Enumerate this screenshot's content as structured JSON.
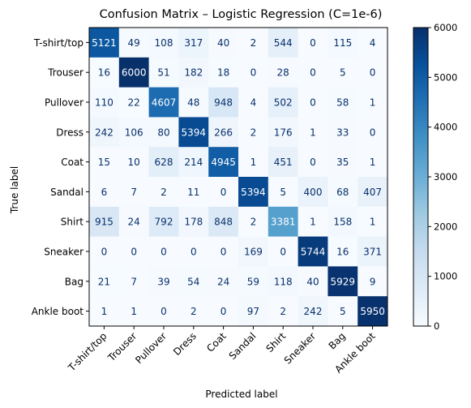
{
  "chart_data": {
    "type": "heatmap",
    "title": "Confusion Matrix – Logistic Regression (C=1e-6)",
    "xlabel": "Predicted label",
    "ylabel": "True label",
    "x_categories": [
      "T-shirt/top",
      "Trouser",
      "Pullover",
      "Dress",
      "Coat",
      "Sandal",
      "Shirt",
      "Sneaker",
      "Bag",
      "Ankle boot"
    ],
    "y_categories": [
      "T-shirt/top",
      "Trouser",
      "Pullover",
      "Dress",
      "Coat",
      "Sandal",
      "Shirt",
      "Sneaker",
      "Bag",
      "Ankle boot"
    ],
    "values": [
      [
        5121,
        49,
        108,
        317,
        40,
        2,
        544,
        0,
        115,
        4
      ],
      [
        16,
        6000,
        51,
        182,
        18,
        0,
        28,
        0,
        5,
        0
      ],
      [
        110,
        22,
        4607,
        48,
        948,
        4,
        502,
        0,
        58,
        1
      ],
      [
        242,
        106,
        80,
        5394,
        266,
        2,
        176,
        1,
        33,
        0
      ],
      [
        15,
        10,
        628,
        214,
        4945,
        1,
        451,
        0,
        35,
        1
      ],
      [
        6,
        7,
        2,
        11,
        0,
        5394,
        5,
        400,
        68,
        407
      ],
      [
        915,
        24,
        792,
        178,
        848,
        2,
        3381,
        1,
        158,
        1
      ],
      [
        0,
        0,
        0,
        0,
        0,
        169,
        0,
        5744,
        16,
        371
      ],
      [
        21,
        7,
        39,
        54,
        24,
        59,
        118,
        40,
        5929,
        9
      ],
      [
        1,
        1,
        0,
        2,
        0,
        97,
        2,
        242,
        5,
        5950
      ]
    ],
    "colorbar": {
      "range": [
        0,
        6000
      ],
      "ticks": [
        "0",
        "1000",
        "2000",
        "3000",
        "4000",
        "5000",
        "6000"
      ],
      "colormap": "Blues",
      "low_color": "#f7fbff",
      "high_color": "#08306b"
    },
    "grid": false,
    "x_tick_rotation": 45
  }
}
